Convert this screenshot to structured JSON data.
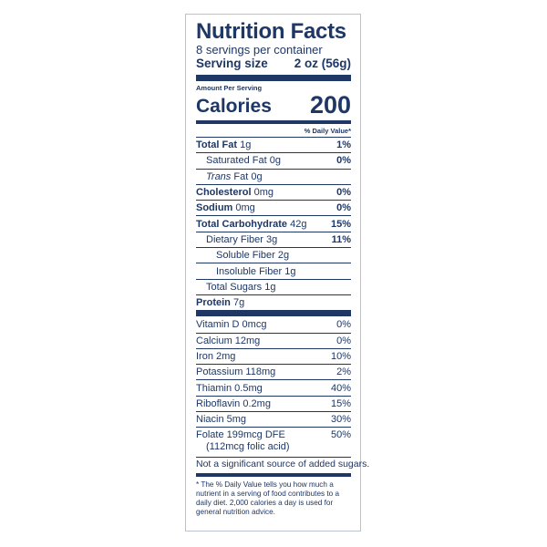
{
  "label": {
    "title": "Nutrition Facts",
    "servings_per_container": "8 servings per container",
    "serving_size_label": "Serving size",
    "serving_size_value": "2 oz (56g)",
    "amount_per_serving": "Amount Per Serving",
    "calories_label": "Calories",
    "calories_value": "200",
    "daily_value_header": "% Daily Value*",
    "nutrients": {
      "total_fat": {
        "name": "Total Fat",
        "amount": "1g",
        "dv": "1%"
      },
      "saturated_fat": {
        "name": "Saturated Fat",
        "amount": "0g",
        "dv": "0%"
      },
      "trans_fat": {
        "name": "Trans",
        "suffix": "Fat",
        "amount": "0g"
      },
      "cholesterol": {
        "name": "Cholesterol",
        "amount": "0mg",
        "dv": "0%"
      },
      "sodium": {
        "name": "Sodium",
        "amount": "0mg",
        "dv": "0%"
      },
      "total_carbohydrate": {
        "name": "Total Carbohydrate",
        "amount": "42g",
        "dv": "15%"
      },
      "dietary_fiber": {
        "name": "Dietary Fiber",
        "amount": "3g",
        "dv": "11%"
      },
      "soluble_fiber": {
        "name": "Soluble Fiber",
        "amount": "2g"
      },
      "insoluble_fiber": {
        "name": "Insoluble Fiber",
        "amount": "1g"
      },
      "total_sugars": {
        "name": "Total Sugars",
        "amount": "1g"
      },
      "protein": {
        "name": "Protein",
        "amount": "7g"
      }
    },
    "vitamins": [
      {
        "name": "Vitamin D 0mcg",
        "dv": "0%"
      },
      {
        "name": "Calcium 12mg",
        "dv": "0%"
      },
      {
        "name": "Iron 2mg",
        "dv": "10%"
      },
      {
        "name": "Potassium 118mg",
        "dv": "2%"
      },
      {
        "name": "Thiamin 0.5mg",
        "dv": "40%"
      },
      {
        "name": "Riboflavin 0.2mg",
        "dv": "15%"
      },
      {
        "name": "Niacin 5mg",
        "dv": "30%"
      }
    ],
    "folate": {
      "name": "Folate 199mcg DFE",
      "sub": "(112mcg folic acid)",
      "dv": "50%"
    },
    "added_sugars_note": "Not a significant source of added sugars.",
    "footnote": "* The % Daily Value tells you how much a nutrient in a serving of food contributes to a daily diet. 2,000 calories a day is used for general nutrition advice."
  },
  "colors": {
    "ink": "#1e3765",
    "border": "#b9c2d0",
    "background": "#ffffff"
  }
}
